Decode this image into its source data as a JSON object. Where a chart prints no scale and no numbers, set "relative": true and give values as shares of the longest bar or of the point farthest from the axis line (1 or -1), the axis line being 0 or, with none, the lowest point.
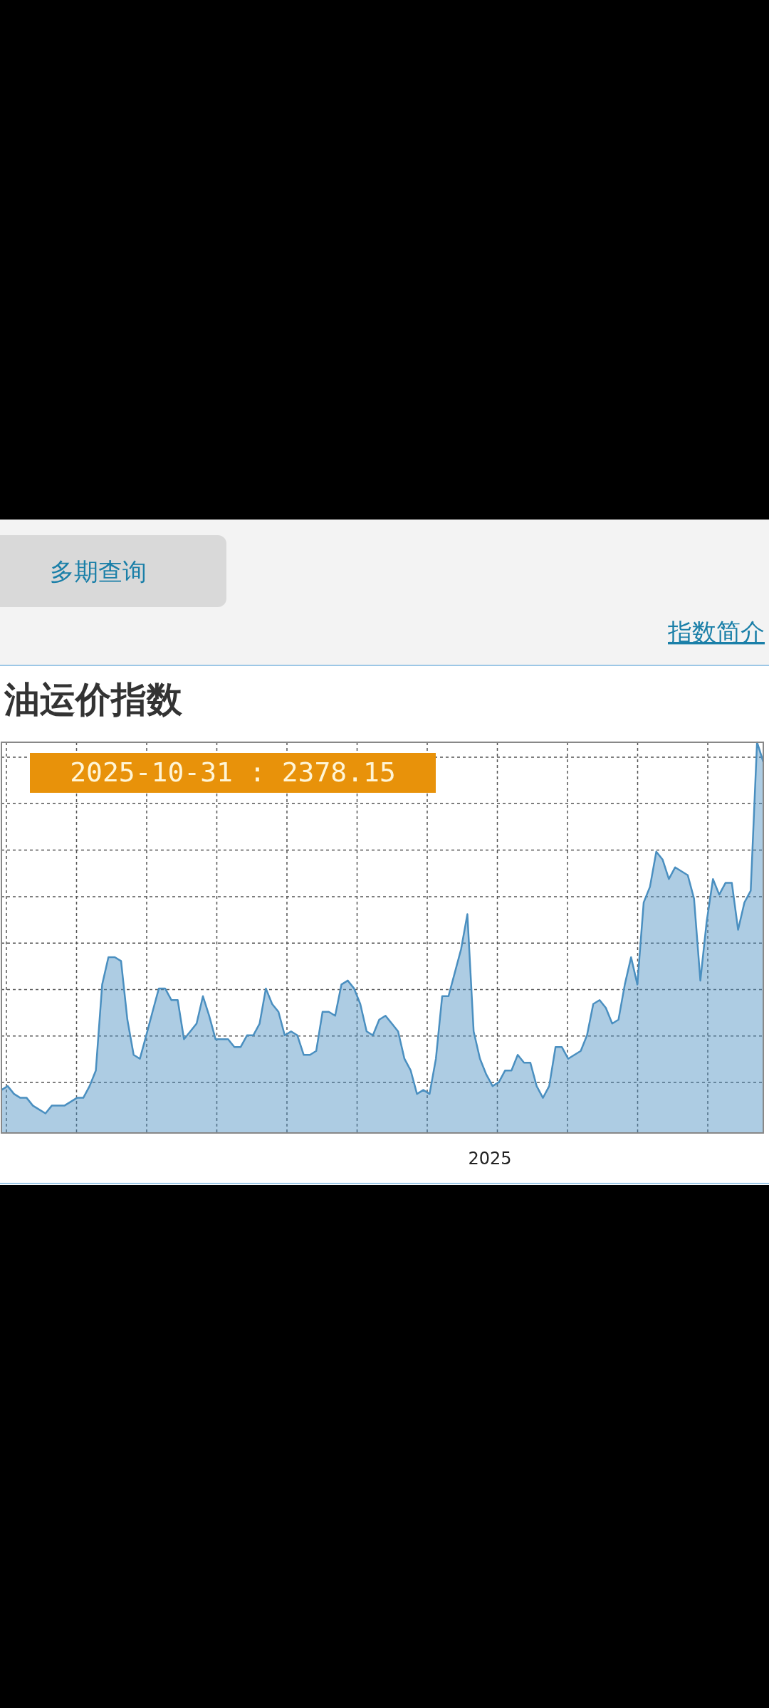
{
  "chart_data": {
    "type": "area",
    "title": "油运价指数",
    "relative": true,
    "color": "#4a8fc0",
    "grid": true,
    "categories": [
      null,
      null,
      null,
      null,
      null,
      null,
      null,
      null,
      null,
      null,
      null,
      null,
      null,
      null,
      null,
      null,
      null,
      null,
      null,
      null,
      null,
      null,
      null,
      null,
      null,
      null,
      null,
      null,
      null,
      null,
      null,
      null,
      null,
      null,
      null,
      null,
      null,
      null,
      null,
      null,
      null,
      null,
      null,
      null,
      null,
      null,
      null,
      null,
      null,
      null,
      null,
      null,
      null,
      null,
      null,
      null,
      null,
      null,
      null,
      null,
      null,
      null,
      null,
      null,
      null,
      null,
      null,
      null,
      null,
      null,
      null,
      null,
      null,
      null,
      null,
      null,
      null,
      null,
      null,
      null,
      null,
      null,
      null,
      null,
      null,
      null,
      null,
      null,
      null,
      null,
      null,
      null,
      null,
      null,
      null,
      null,
      null,
      null,
      null,
      null,
      null,
      null,
      null,
      null,
      null,
      null,
      null,
      null,
      null,
      null,
      null,
      null,
      null,
      null,
      null,
      null,
      null,
      null,
      null,
      null,
      null,
      null
    ],
    "values": [
      0.11,
      0.12,
      0.1,
      0.09,
      0.09,
      0.07,
      0.06,
      0.05,
      0.07,
      0.07,
      0.07,
      0.08,
      0.09,
      0.09,
      0.12,
      0.16,
      0.38,
      0.45,
      0.45,
      0.44,
      0.29,
      0.2,
      0.19,
      0.25,
      0.31,
      0.37,
      0.37,
      0.34,
      0.34,
      0.24,
      0.26,
      0.28,
      0.35,
      0.3,
      0.24,
      0.24,
      0.24,
      0.22,
      0.22,
      0.25,
      0.25,
      0.28,
      0.37,
      0.33,
      0.31,
      0.25,
      0.26,
      0.25,
      0.2,
      0.2,
      0.21,
      0.31,
      0.31,
      0.3,
      0.38,
      0.39,
      0.37,
      0.33,
      0.26,
      0.25,
      0.29,
      0.3,
      0.28,
      0.26,
      0.19,
      0.16,
      0.1,
      0.11,
      0.1,
      0.19,
      0.35,
      0.35,
      0.41,
      0.47,
      0.56,
      0.26,
      0.19,
      0.15,
      0.12,
      0.13,
      0.16,
      0.16,
      0.2,
      0.18,
      0.18,
      0.12,
      0.09,
      0.12,
      0.22,
      0.22,
      0.19,
      0.2,
      0.21,
      0.25,
      0.33,
      0.34,
      0.32,
      0.28,
      0.29,
      0.38,
      0.45,
      0.38,
      0.59,
      0.63,
      0.72,
      0.7,
      0.65,
      0.68,
      0.67,
      0.66,
      0.6,
      0.39,
      0.54,
      0.65,
      0.61,
      0.64,
      0.64,
      0.52,
      0.59,
      0.62,
      1.0,
      0.95
    ],
    "annotations": [
      "多期查询",
      "指数简介",
      "2025-10-31 : 2378.15",
      "2025"
    ]
  }
}
